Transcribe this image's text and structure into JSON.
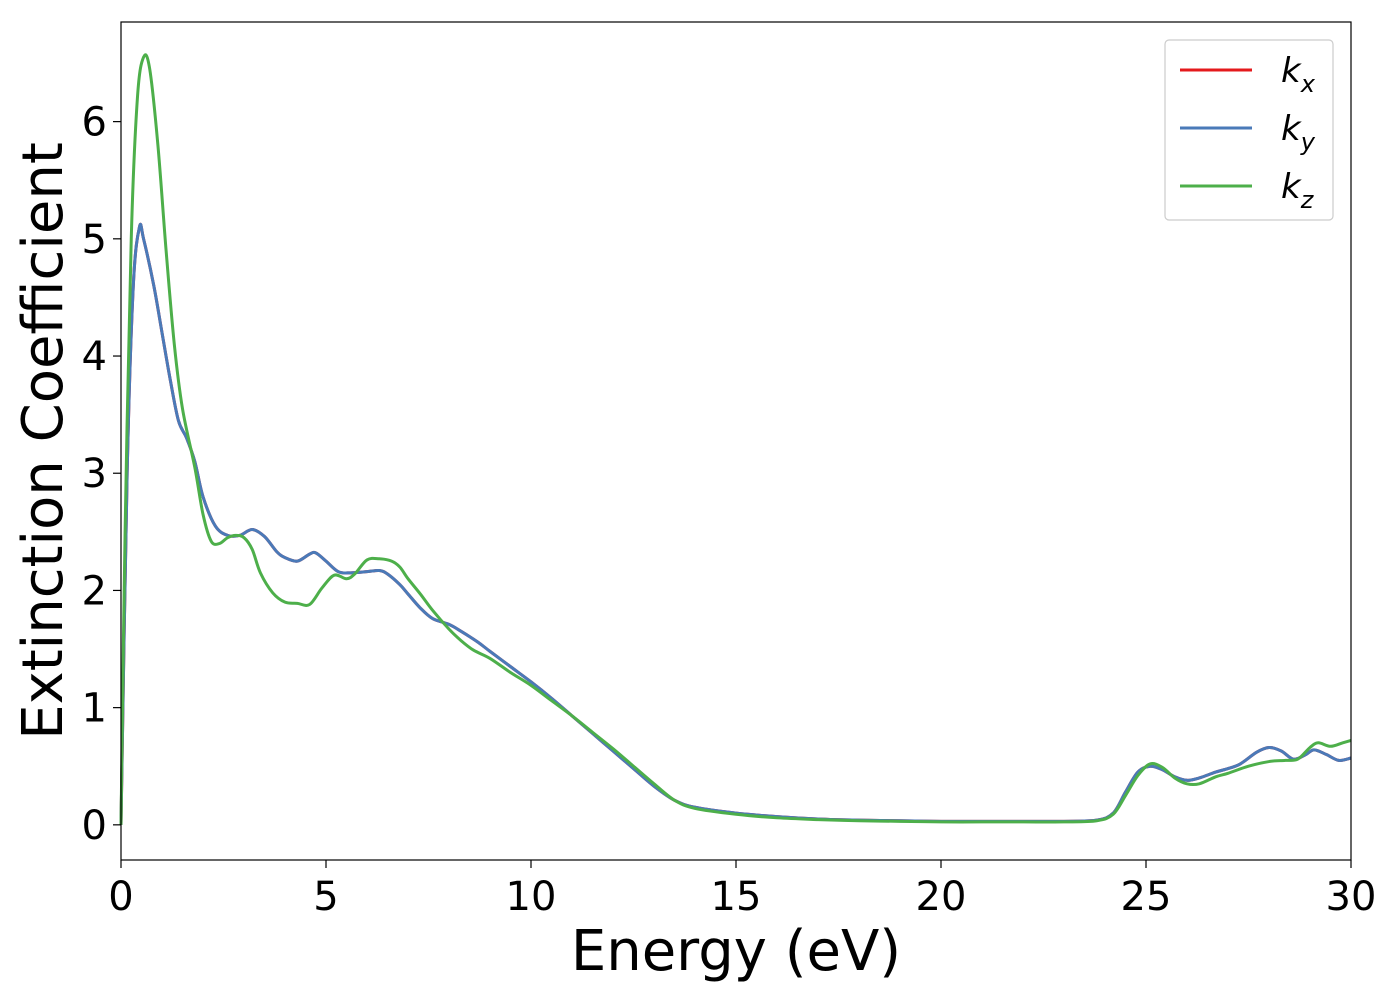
{
  "chart_data": {
    "type": "line",
    "title": "",
    "xlabel": "Energy (eV)",
    "ylabel": "Extinction Coefficient",
    "xlim": [
      0,
      30
    ],
    "ylim": [
      -0.3,
      6.85
    ],
    "x_ticks": [
      0,
      5,
      10,
      15,
      20,
      25,
      30
    ],
    "y_ticks": [
      0,
      1,
      2,
      3,
      4,
      5,
      6
    ],
    "grid": false,
    "legend_position": "top-right",
    "series": [
      {
        "name": "k",
        "subscript": "x",
        "color": "#e41a1c",
        "points": [
          [
            0,
            0
          ],
          [
            0.15,
            3.0
          ],
          [
            0.3,
            4.6
          ],
          [
            0.45,
            5.1
          ],
          [
            0.55,
            5.0
          ],
          [
            0.8,
            4.6
          ],
          [
            1.0,
            4.2
          ],
          [
            1.2,
            3.8
          ],
          [
            1.4,
            3.45
          ],
          [
            1.6,
            3.3
          ],
          [
            1.8,
            3.1
          ],
          [
            2.0,
            2.8
          ],
          [
            2.3,
            2.55
          ],
          [
            2.6,
            2.47
          ],
          [
            2.9,
            2.47
          ],
          [
            3.2,
            2.52
          ],
          [
            3.5,
            2.46
          ],
          [
            3.8,
            2.33
          ],
          [
            4.0,
            2.28
          ],
          [
            4.3,
            2.25
          ],
          [
            4.6,
            2.31
          ],
          [
            4.75,
            2.32
          ],
          [
            5.0,
            2.25
          ],
          [
            5.3,
            2.16
          ],
          [
            5.6,
            2.15
          ],
          [
            6.0,
            2.16
          ],
          [
            6.3,
            2.17
          ],
          [
            6.5,
            2.14
          ],
          [
            6.8,
            2.05
          ],
          [
            7.0,
            1.97
          ],
          [
            7.3,
            1.85
          ],
          [
            7.6,
            1.76
          ],
          [
            8.0,
            1.71
          ],
          [
            8.3,
            1.65
          ],
          [
            8.7,
            1.56
          ],
          [
            9.0,
            1.48
          ],
          [
            9.5,
            1.35
          ],
          [
            10.0,
            1.22
          ],
          [
            10.5,
            1.08
          ],
          [
            11.0,
            0.93
          ],
          [
            11.5,
            0.78
          ],
          [
            12.0,
            0.63
          ],
          [
            12.5,
            0.48
          ],
          [
            13.0,
            0.33
          ],
          [
            13.5,
            0.21
          ],
          [
            14.0,
            0.15
          ],
          [
            15.0,
            0.1
          ],
          [
            16.0,
            0.07
          ],
          [
            17.0,
            0.05
          ],
          [
            18.0,
            0.04
          ],
          [
            19.0,
            0.035
          ],
          [
            20.0,
            0.03
          ],
          [
            21.0,
            0.03
          ],
          [
            22.0,
            0.03
          ],
          [
            23.0,
            0.03
          ],
          [
            23.8,
            0.04
          ],
          [
            24.2,
            0.1
          ],
          [
            24.5,
            0.28
          ],
          [
            24.8,
            0.45
          ],
          [
            25.1,
            0.5
          ],
          [
            25.4,
            0.47
          ],
          [
            25.7,
            0.41
          ],
          [
            26.0,
            0.38
          ],
          [
            26.3,
            0.4
          ],
          [
            26.7,
            0.45
          ],
          [
            27.0,
            0.48
          ],
          [
            27.3,
            0.52
          ],
          [
            27.7,
            0.62
          ],
          [
            28.0,
            0.66
          ],
          [
            28.3,
            0.63
          ],
          [
            28.6,
            0.56
          ],
          [
            28.9,
            0.6
          ],
          [
            29.1,
            0.64
          ],
          [
            29.4,
            0.6
          ],
          [
            29.7,
            0.55
          ],
          [
            30.0,
            0.57
          ]
        ]
      },
      {
        "name": "k",
        "subscript": "y",
        "color": "#4a7ab8",
        "points": [
          [
            0,
            0
          ],
          [
            0.15,
            3.0
          ],
          [
            0.3,
            4.6
          ],
          [
            0.45,
            5.1
          ],
          [
            0.55,
            5.0
          ],
          [
            0.8,
            4.6
          ],
          [
            1.0,
            4.2
          ],
          [
            1.2,
            3.8
          ],
          [
            1.4,
            3.45
          ],
          [
            1.6,
            3.3
          ],
          [
            1.8,
            3.1
          ],
          [
            2.0,
            2.8
          ],
          [
            2.3,
            2.55
          ],
          [
            2.6,
            2.47
          ],
          [
            2.9,
            2.47
          ],
          [
            3.2,
            2.52
          ],
          [
            3.5,
            2.46
          ],
          [
            3.8,
            2.33
          ],
          [
            4.0,
            2.28
          ],
          [
            4.3,
            2.25
          ],
          [
            4.6,
            2.31
          ],
          [
            4.75,
            2.32
          ],
          [
            5.0,
            2.25
          ],
          [
            5.3,
            2.16
          ],
          [
            5.6,
            2.15
          ],
          [
            6.0,
            2.16
          ],
          [
            6.3,
            2.17
          ],
          [
            6.5,
            2.14
          ],
          [
            6.8,
            2.05
          ],
          [
            7.0,
            1.97
          ],
          [
            7.3,
            1.85
          ],
          [
            7.6,
            1.76
          ],
          [
            8.0,
            1.71
          ],
          [
            8.3,
            1.65
          ],
          [
            8.7,
            1.56
          ],
          [
            9.0,
            1.48
          ],
          [
            9.5,
            1.35
          ],
          [
            10.0,
            1.22
          ],
          [
            10.5,
            1.08
          ],
          [
            11.0,
            0.93
          ],
          [
            11.5,
            0.78
          ],
          [
            12.0,
            0.63
          ],
          [
            12.5,
            0.48
          ],
          [
            13.0,
            0.33
          ],
          [
            13.5,
            0.21
          ],
          [
            14.0,
            0.15
          ],
          [
            15.0,
            0.1
          ],
          [
            16.0,
            0.07
          ],
          [
            17.0,
            0.05
          ],
          [
            18.0,
            0.04
          ],
          [
            19.0,
            0.035
          ],
          [
            20.0,
            0.03
          ],
          [
            21.0,
            0.03
          ],
          [
            22.0,
            0.03
          ],
          [
            23.0,
            0.03
          ],
          [
            23.8,
            0.04
          ],
          [
            24.2,
            0.1
          ],
          [
            24.5,
            0.28
          ],
          [
            24.8,
            0.45
          ],
          [
            25.1,
            0.5
          ],
          [
            25.4,
            0.47
          ],
          [
            25.7,
            0.41
          ],
          [
            26.0,
            0.38
          ],
          [
            26.3,
            0.4
          ],
          [
            26.7,
            0.45
          ],
          [
            27.0,
            0.48
          ],
          [
            27.3,
            0.52
          ],
          [
            27.7,
            0.62
          ],
          [
            28.0,
            0.66
          ],
          [
            28.3,
            0.63
          ],
          [
            28.6,
            0.56
          ],
          [
            28.9,
            0.6
          ],
          [
            29.1,
            0.64
          ],
          [
            29.4,
            0.6
          ],
          [
            29.7,
            0.55
          ],
          [
            30.0,
            0.57
          ]
        ]
      },
      {
        "name": "k",
        "subscript": "z",
        "color": "#4daf4a",
        "points": [
          [
            0,
            0
          ],
          [
            0.1,
            2.5
          ],
          [
            0.25,
            5.0
          ],
          [
            0.4,
            6.2
          ],
          [
            0.55,
            6.55
          ],
          [
            0.7,
            6.45
          ],
          [
            0.9,
            5.8
          ],
          [
            1.1,
            4.9
          ],
          [
            1.3,
            4.1
          ],
          [
            1.5,
            3.55
          ],
          [
            1.8,
            3.05
          ],
          [
            2.0,
            2.65
          ],
          [
            2.2,
            2.42
          ],
          [
            2.4,
            2.4
          ],
          [
            2.6,
            2.45
          ],
          [
            2.8,
            2.47
          ],
          [
            3.0,
            2.45
          ],
          [
            3.2,
            2.35
          ],
          [
            3.4,
            2.15
          ],
          [
            3.7,
            1.98
          ],
          [
            4.0,
            1.9
          ],
          [
            4.3,
            1.89
          ],
          [
            4.6,
            1.88
          ],
          [
            4.9,
            2.02
          ],
          [
            5.2,
            2.13
          ],
          [
            5.5,
            2.1
          ],
          [
            5.7,
            2.14
          ],
          [
            6.0,
            2.26
          ],
          [
            6.3,
            2.27
          ],
          [
            6.6,
            2.25
          ],
          [
            6.8,
            2.2
          ],
          [
            7.0,
            2.1
          ],
          [
            7.3,
            1.97
          ],
          [
            7.6,
            1.83
          ],
          [
            8.0,
            1.67
          ],
          [
            8.3,
            1.57
          ],
          [
            8.6,
            1.49
          ],
          [
            9.0,
            1.42
          ],
          [
            9.5,
            1.3
          ],
          [
            10.0,
            1.19
          ],
          [
            10.5,
            1.06
          ],
          [
            11.0,
            0.93
          ],
          [
            11.5,
            0.79
          ],
          [
            12.0,
            0.65
          ],
          [
            12.5,
            0.5
          ],
          [
            13.0,
            0.35
          ],
          [
            13.5,
            0.21
          ],
          [
            14.0,
            0.14
          ],
          [
            15.0,
            0.09
          ],
          [
            16.0,
            0.06
          ],
          [
            17.0,
            0.045
          ],
          [
            18.0,
            0.035
          ],
          [
            19.0,
            0.03
          ],
          [
            20.0,
            0.025
          ],
          [
            21.0,
            0.025
          ],
          [
            22.0,
            0.025
          ],
          [
            23.0,
            0.025
          ],
          [
            23.8,
            0.035
          ],
          [
            24.2,
            0.09
          ],
          [
            24.5,
            0.25
          ],
          [
            24.8,
            0.42
          ],
          [
            25.1,
            0.52
          ],
          [
            25.4,
            0.49
          ],
          [
            25.7,
            0.4
          ],
          [
            26.0,
            0.35
          ],
          [
            26.3,
            0.35
          ],
          [
            26.7,
            0.41
          ],
          [
            27.0,
            0.44
          ],
          [
            27.5,
            0.5
          ],
          [
            28.0,
            0.54
          ],
          [
            28.4,
            0.55
          ],
          [
            28.7,
            0.56
          ],
          [
            29.0,
            0.66
          ],
          [
            29.2,
            0.7
          ],
          [
            29.5,
            0.67
          ],
          [
            29.8,
            0.7
          ],
          [
            30.0,
            0.72
          ]
        ]
      }
    ]
  }
}
